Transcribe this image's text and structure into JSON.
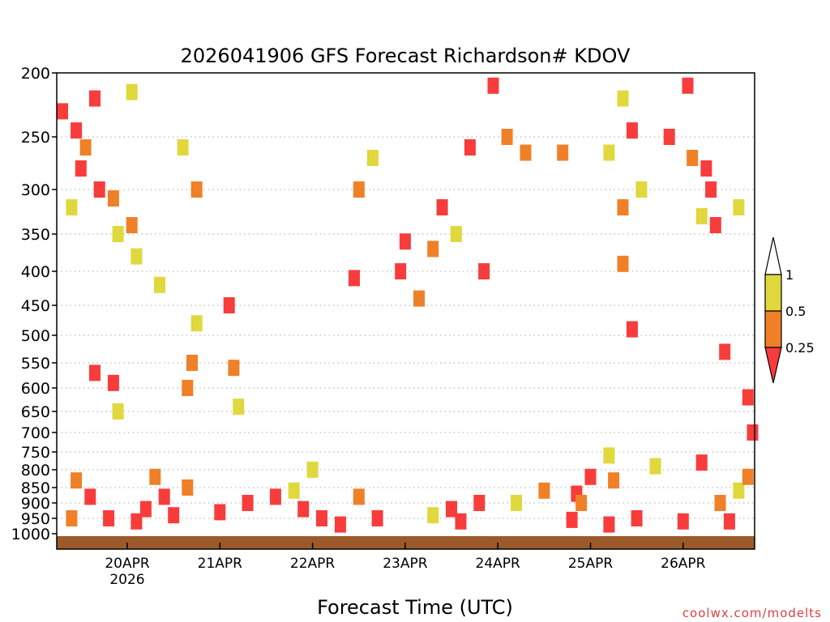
{
  "chart_data": {
    "type": "heatmap",
    "title": "2026041906 GFS Forecast Richardson# KDOV",
    "xlabel": "Forecast Time (UTC)",
    "ylabel": "",
    "y_axis": "pressure (hPa), inverted",
    "y_ticks": [
      200,
      250,
      300,
      350,
      400,
      450,
      500,
      550,
      600,
      650,
      700,
      750,
      800,
      850,
      900,
      950,
      1000
    ],
    "ylim": [
      1000,
      200
    ],
    "x_ticks": [
      "20APR",
      "21APR",
      "22APR",
      "23APR",
      "24APR",
      "25APR",
      "26APR"
    ],
    "x_year_label": "2026",
    "grid": "dotted horizontal lines at pressure ticks",
    "colorbar": {
      "labels": [
        "1",
        "0.5",
        "0.25"
      ],
      "colors": {
        "gt_0_5": "#e0d83c",
        "0_25_to_0_5": "#f08028",
        "lt_0_25": "#f83c3c"
      },
      "extends": "both"
    },
    "ground_color": "#9a5a2a",
    "patches": [
      {
        "day": -0.7,
        "p": 230,
        "cls": "r"
      },
      {
        "day": -0.55,
        "p": 245,
        "cls": "r"
      },
      {
        "day": -0.45,
        "p": 260,
        "cls": "o"
      },
      {
        "day": -0.5,
        "p": 280,
        "cls": "r"
      },
      {
        "day": -0.35,
        "p": 220,
        "cls": "r"
      },
      {
        "day": -0.3,
        "p": 300,
        "cls": "r"
      },
      {
        "day": -0.15,
        "p": 310,
        "cls": "o"
      },
      {
        "day": -0.1,
        "p": 350,
        "cls": "y"
      },
      {
        "day": 0.05,
        "p": 215,
        "cls": "y"
      },
      {
        "day": 0.05,
        "p": 340,
        "cls": "o"
      },
      {
        "day": -0.6,
        "p": 320,
        "cls": "y"
      },
      {
        "day": 0.1,
        "p": 380,
        "cls": "y"
      },
      {
        "day": 0.35,
        "p": 420,
        "cls": "y"
      },
      {
        "day": 0.6,
        "p": 260,
        "cls": "y"
      },
      {
        "day": 0.75,
        "p": 300,
        "cls": "o"
      },
      {
        "day": 0.7,
        "p": 550,
        "cls": "o"
      },
      {
        "day": 0.65,
        "p": 600,
        "cls": "o"
      },
      {
        "day": 0.75,
        "p": 480,
        "cls": "y"
      },
      {
        "day": 1.1,
        "p": 450,
        "cls": "r"
      },
      {
        "day": 1.15,
        "p": 560,
        "cls": "o"
      },
      {
        "day": 1.2,
        "p": 640,
        "cls": "y"
      },
      {
        "day": -0.35,
        "p": 570,
        "cls": "r"
      },
      {
        "day": -0.15,
        "p": 590,
        "cls": "r"
      },
      {
        "day": -0.1,
        "p": 650,
        "cls": "y"
      },
      {
        "day": 2.5,
        "p": 300,
        "cls": "o"
      },
      {
        "day": 2.45,
        "p": 410,
        "cls": "r"
      },
      {
        "day": 2.65,
        "p": 270,
        "cls": "y"
      },
      {
        "day": 3.4,
        "p": 320,
        "cls": "r"
      },
      {
        "day": 3.3,
        "p": 370,
        "cls": "o"
      },
      {
        "day": 3.55,
        "p": 350,
        "cls": "y"
      },
      {
        "day": 3.0,
        "p": 360,
        "cls": "r"
      },
      {
        "day": 2.95,
        "p": 400,
        "cls": "r"
      },
      {
        "day": 3.15,
        "p": 440,
        "cls": "o"
      },
      {
        "day": 3.7,
        "p": 260,
        "cls": "r"
      },
      {
        "day": 3.85,
        "p": 400,
        "cls": "r"
      },
      {
        "day": 3.95,
        "p": 210,
        "cls": "r"
      },
      {
        "day": 4.1,
        "p": 250,
        "cls": "o"
      },
      {
        "day": 4.3,
        "p": 265,
        "cls": "o"
      },
      {
        "day": 4.7,
        "p": 265,
        "cls": "o"
      },
      {
        "day": 5.2,
        "p": 265,
        "cls": "y"
      },
      {
        "day": 5.35,
        "p": 220,
        "cls": "y"
      },
      {
        "day": 5.45,
        "p": 245,
        "cls": "r"
      },
      {
        "day": 5.55,
        "p": 300,
        "cls": "y"
      },
      {
        "day": 5.35,
        "p": 320,
        "cls": "o"
      },
      {
        "day": 5.35,
        "p": 390,
        "cls": "o"
      },
      {
        "day": 5.45,
        "p": 490,
        "cls": "r"
      },
      {
        "day": 5.85,
        "p": 250,
        "cls": "r"
      },
      {
        "day": 6.05,
        "p": 210,
        "cls": "r"
      },
      {
        "day": 6.1,
        "p": 270,
        "cls": "o"
      },
      {
        "day": 6.25,
        "p": 280,
        "cls": "r"
      },
      {
        "day": 6.3,
        "p": 300,
        "cls": "r"
      },
      {
        "day": 6.35,
        "p": 340,
        "cls": "r"
      },
      {
        "day": 6.2,
        "p": 330,
        "cls": "y"
      },
      {
        "day": 6.6,
        "p": 320,
        "cls": "y"
      },
      {
        "day": 6.45,
        "p": 530,
        "cls": "r"
      },
      {
        "day": 6.7,
        "p": 620,
        "cls": "r"
      },
      {
        "day": 6.75,
        "p": 700,
        "cls": "r"
      },
      {
        "day": 5.0,
        "p": 820,
        "cls": "r"
      },
      {
        "day": 5.25,
        "p": 830,
        "cls": "o"
      },
      {
        "day": 4.85,
        "p": 870,
        "cls": "r"
      },
      {
        "day": 4.9,
        "p": 900,
        "cls": "o"
      },
      {
        "day": 5.2,
        "p": 760,
        "cls": "y"
      },
      {
        "day": 5.7,
        "p": 790,
        "cls": "y"
      },
      {
        "day": 6.2,
        "p": 780,
        "cls": "r"
      },
      {
        "day": 6.6,
        "p": 860,
        "cls": "y"
      },
      {
        "day": 6.4,
        "p": 900,
        "cls": "o"
      },
      {
        "day": 6.7,
        "p": 820,
        "cls": "o"
      },
      {
        "day": 4.5,
        "p": 860,
        "cls": "o"
      },
      {
        "day": 4.2,
        "p": 900,
        "cls": "y"
      },
      {
        "day": 1.3,
        "p": 900,
        "cls": "r"
      },
      {
        "day": 1.0,
        "p": 930,
        "cls": "r"
      },
      {
        "day": 1.6,
        "p": 880,
        "cls": "r"
      },
      {
        "day": 0.4,
        "p": 880,
        "cls": "r"
      },
      {
        "day": 0.5,
        "p": 940,
        "cls": "r"
      },
      {
        "day": 0.2,
        "p": 920,
        "cls": "r"
      },
      {
        "day": -0.4,
        "p": 880,
        "cls": "r"
      },
      {
        "day": -0.2,
        "p": 950,
        "cls": "r"
      },
      {
        "day": 0.1,
        "p": 960,
        "cls": "r"
      },
      {
        "day": -0.6,
        "p": 950,
        "cls": "o"
      },
      {
        "day": -0.55,
        "p": 830,
        "cls": "o"
      },
      {
        "day": 0.3,
        "p": 820,
        "cls": "o"
      },
      {
        "day": 0.65,
        "p": 850,
        "cls": "o"
      },
      {
        "day": 1.8,
        "p": 860,
        "cls": "y"
      },
      {
        "day": 2.0,
        "p": 800,
        "cls": "y"
      },
      {
        "day": 1.9,
        "p": 920,
        "cls": "r"
      },
      {
        "day": 2.1,
        "p": 950,
        "cls": "r"
      },
      {
        "day": 2.5,
        "p": 880,
        "cls": "o"
      },
      {
        "day": 2.7,
        "p": 950,
        "cls": "r"
      },
      {
        "day": 2.3,
        "p": 970,
        "cls": "r"
      },
      {
        "day": 3.5,
        "p": 920,
        "cls": "r"
      },
      {
        "day": 3.6,
        "p": 960,
        "cls": "r"
      },
      {
        "day": 3.8,
        "p": 900,
        "cls": "r"
      },
      {
        "day": 3.3,
        "p": 940,
        "cls": "y"
      },
      {
        "day": 5.5,
        "p": 950,
        "cls": "r"
      },
      {
        "day": 6.0,
        "p": 960,
        "cls": "r"
      },
      {
        "day": 6.5,
        "p": 960,
        "cls": "r"
      },
      {
        "day": 4.8,
        "p": 955,
        "cls": "r"
      },
      {
        "day": 5.2,
        "p": 970,
        "cls": "r"
      }
    ]
  },
  "credit": "coolwx.com/modelts"
}
